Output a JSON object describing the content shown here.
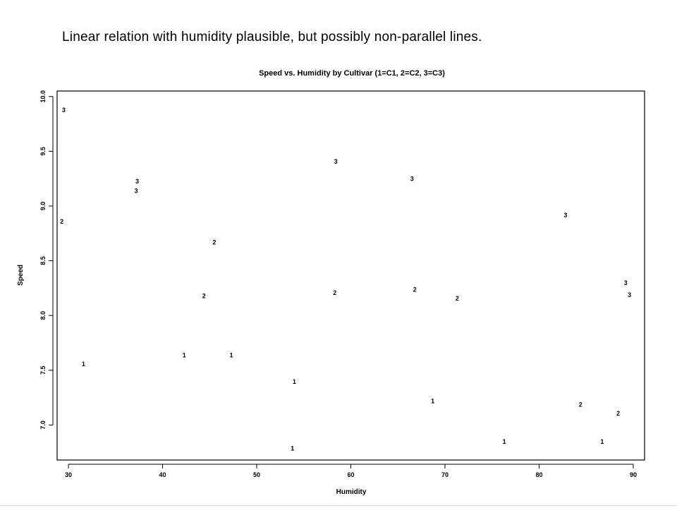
{
  "slide": {
    "caption": "Linear relation with humidity plausible, but possibly non-parallel lines."
  },
  "chart_data": {
    "type": "scatter",
    "title": "Speed vs. Humidity by Cultivar (1=C1, 2=C2, 3=C3)",
    "xlabel": "Humidity",
    "ylabel": "Speed",
    "xlim": [
      28.8,
      91.2
    ],
    "ylim": [
      6.68,
      10.05
    ],
    "x_ticks": [
      30,
      40,
      50,
      60,
      70,
      80,
      90
    ],
    "y_ticks": [
      7.0,
      7.5,
      8.0,
      8.5,
      9.0,
      9.5,
      10.0
    ],
    "x_tick_labels": [
      "30",
      "40",
      "50",
      "60",
      "70",
      "80",
      "90"
    ],
    "y_tick_labels": [
      "7.0",
      "7.5",
      "8.0",
      "8.5",
      "9.0",
      "9.5",
      "10.0"
    ],
    "grid": false,
    "marker": "point labels show cultivar number",
    "series": [
      {
        "name": "1",
        "points": [
          {
            "x": 31.6,
            "y": 7.56
          },
          {
            "x": 42.3,
            "y": 7.64
          },
          {
            "x": 47.3,
            "y": 7.64
          },
          {
            "x": 54.0,
            "y": 7.4
          },
          {
            "x": 53.8,
            "y": 6.79
          },
          {
            "x": 68.7,
            "y": 7.22
          },
          {
            "x": 76.3,
            "y": 6.85
          },
          {
            "x": 86.7,
            "y": 6.85
          }
        ]
      },
      {
        "name": "2",
        "points": [
          {
            "x": 29.3,
            "y": 8.86
          },
          {
            "x": 45.5,
            "y": 8.67
          },
          {
            "x": 44.4,
            "y": 8.18
          },
          {
            "x": 58.3,
            "y": 8.21
          },
          {
            "x": 66.8,
            "y": 8.24
          },
          {
            "x": 71.3,
            "y": 8.16
          },
          {
            "x": 84.4,
            "y": 7.19
          },
          {
            "x": 88.4,
            "y": 7.11
          }
        ]
      },
      {
        "name": "3",
        "points": [
          {
            "x": 29.5,
            "y": 9.88
          },
          {
            "x": 37.3,
            "y": 9.23
          },
          {
            "x": 37.2,
            "y": 9.14
          },
          {
            "x": 58.4,
            "y": 9.41
          },
          {
            "x": 66.5,
            "y": 9.25
          },
          {
            "x": 82.8,
            "y": 8.92
          },
          {
            "x": 89.2,
            "y": 8.3
          },
          {
            "x": 89.6,
            "y": 8.19
          }
        ]
      }
    ]
  }
}
